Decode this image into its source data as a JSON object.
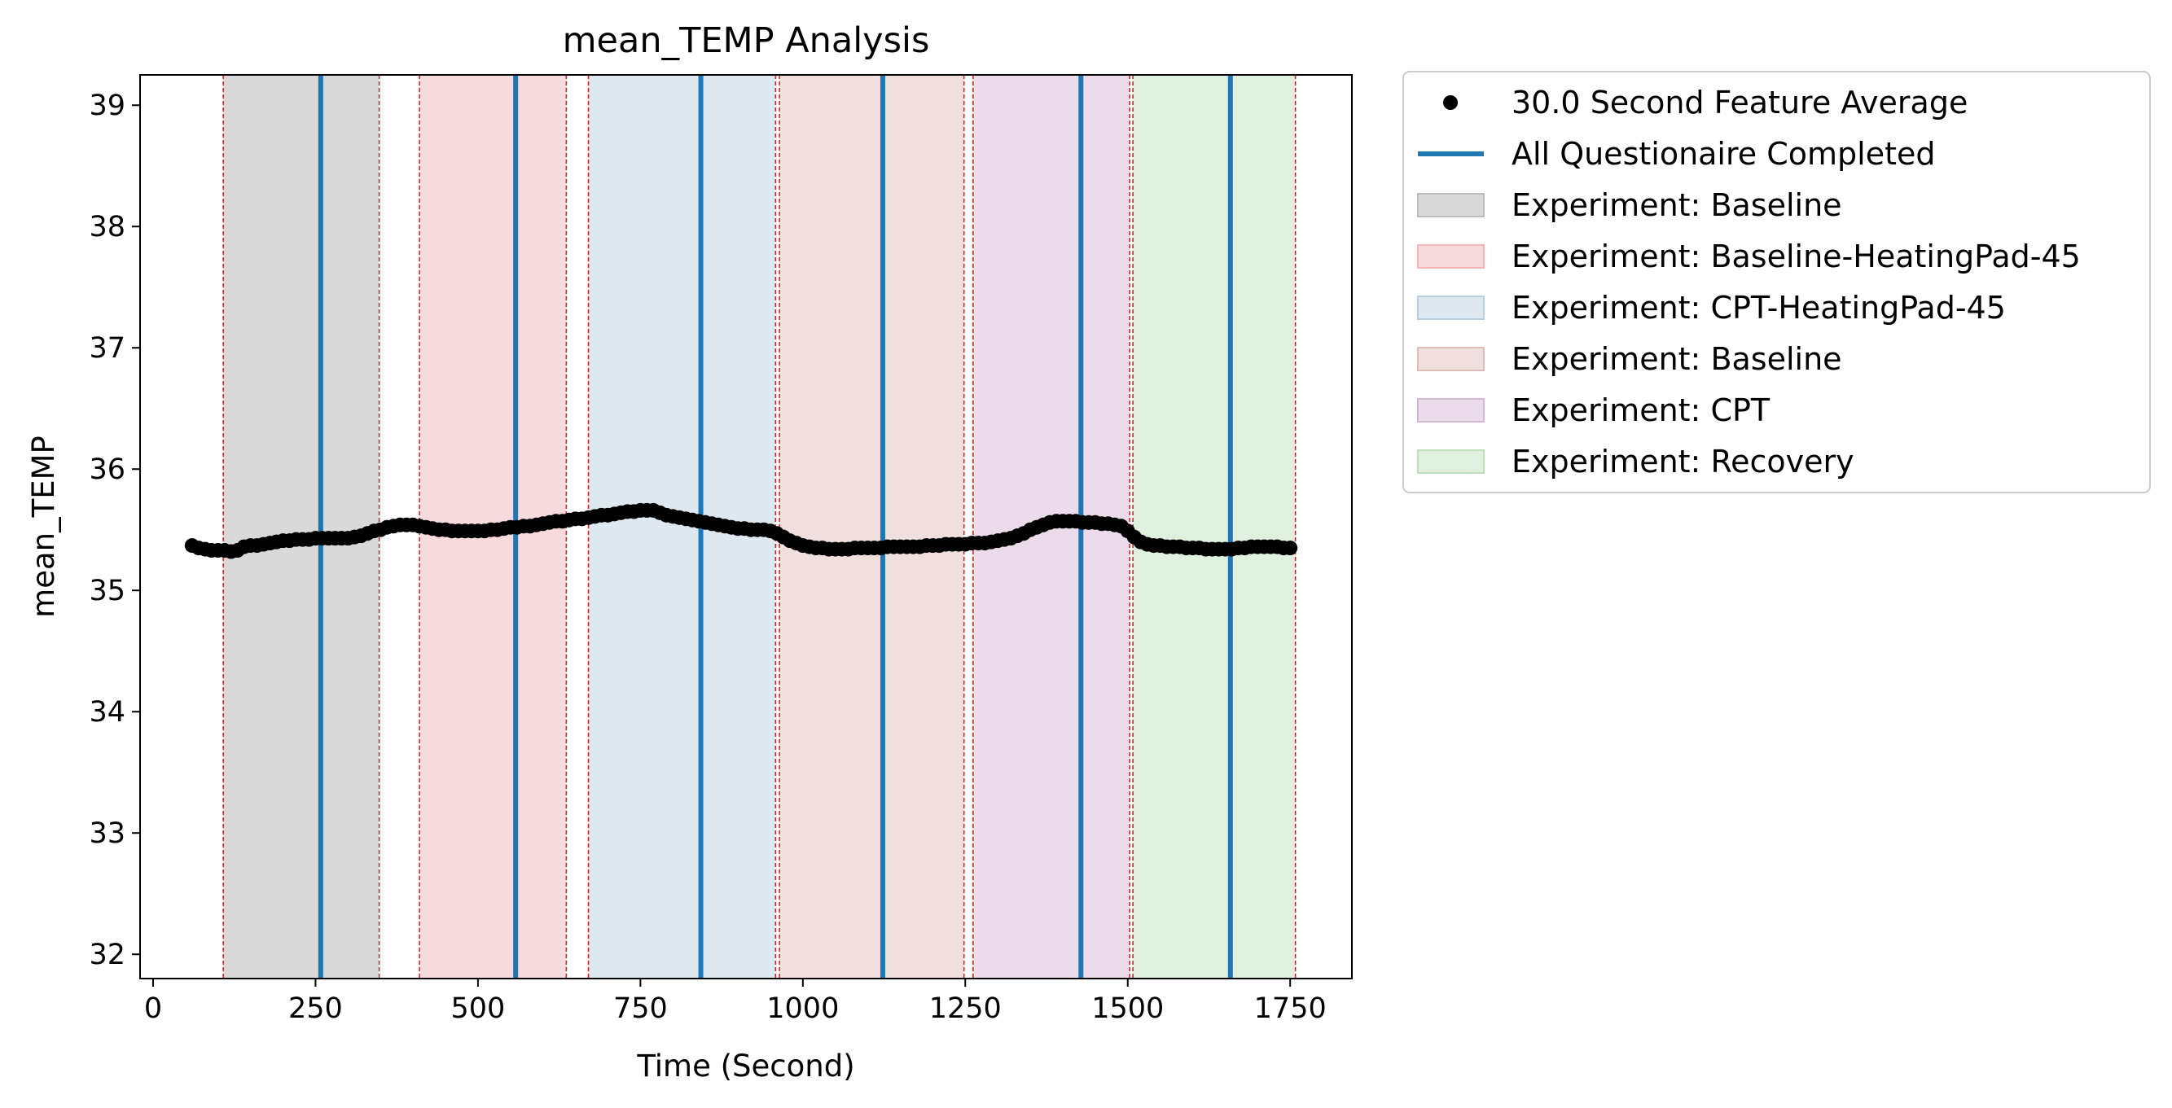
{
  "chart_data": {
    "type": "scatter",
    "title": "mean_TEMP Analysis",
    "xlabel": "Time (Second)",
    "ylabel": "mean_TEMP",
    "xlim": [
      -20,
      1845
    ],
    "ylim": [
      31.8,
      39.25
    ],
    "x_ticks": [
      0,
      250,
      500,
      750,
      1000,
      1250,
      1500,
      1750
    ],
    "y_ticks": [
      32,
      33,
      34,
      35,
      36,
      37,
      38,
      39
    ],
    "grid": false,
    "legend_position": "outside upper right",
    "colors": {
      "points": "#000000",
      "questionnaire": "#1f77b4",
      "boundary": "#d62728"
    },
    "series": [
      {
        "name": "30.0 Second Feature Average",
        "kind": "points",
        "points": [
          [
            60,
            35.37
          ],
          [
            70,
            35.35
          ],
          [
            80,
            35.34
          ],
          [
            90,
            35.33
          ],
          [
            100,
            35.33
          ],
          [
            110,
            35.33
          ],
          [
            120,
            35.32
          ],
          [
            130,
            35.33
          ],
          [
            140,
            35.36
          ],
          [
            150,
            35.37
          ],
          [
            160,
            35.37
          ],
          [
            170,
            35.38
          ],
          [
            180,
            35.39
          ],
          [
            190,
            35.4
          ],
          [
            200,
            35.41
          ],
          [
            210,
            35.41
          ],
          [
            220,
            35.42
          ],
          [
            230,
            35.42
          ],
          [
            240,
            35.42
          ],
          [
            250,
            35.43
          ],
          [
            260,
            35.43
          ],
          [
            270,
            35.43
          ],
          [
            280,
            35.43
          ],
          [
            290,
            35.43
          ],
          [
            300,
            35.43
          ],
          [
            310,
            35.44
          ],
          [
            320,
            35.45
          ],
          [
            330,
            35.47
          ],
          [
            340,
            35.49
          ],
          [
            350,
            35.5
          ],
          [
            360,
            35.52
          ],
          [
            370,
            35.53
          ],
          [
            380,
            35.54
          ],
          [
            390,
            35.54
          ],
          [
            400,
            35.54
          ],
          [
            410,
            35.53
          ],
          [
            420,
            35.52
          ],
          [
            430,
            35.51
          ],
          [
            440,
            35.5
          ],
          [
            450,
            35.5
          ],
          [
            460,
            35.49
          ],
          [
            470,
            35.49
          ],
          [
            480,
            35.49
          ],
          [
            490,
            35.49
          ],
          [
            500,
            35.49
          ],
          [
            510,
            35.49
          ],
          [
            520,
            35.5
          ],
          [
            530,
            35.5
          ],
          [
            540,
            35.51
          ],
          [
            550,
            35.52
          ],
          [
            560,
            35.52
          ],
          [
            570,
            35.53
          ],
          [
            580,
            35.53
          ],
          [
            590,
            35.54
          ],
          [
            600,
            35.55
          ],
          [
            610,
            35.56
          ],
          [
            620,
            35.57
          ],
          [
            630,
            35.57
          ],
          [
            640,
            35.58
          ],
          [
            650,
            35.59
          ],
          [
            660,
            35.59
          ],
          [
            670,
            35.6
          ],
          [
            680,
            35.61
          ],
          [
            690,
            35.62
          ],
          [
            700,
            35.62
          ],
          [
            710,
            35.63
          ],
          [
            720,
            35.64
          ],
          [
            730,
            35.65
          ],
          [
            740,
            35.65
          ],
          [
            750,
            35.66
          ],
          [
            760,
            35.66
          ],
          [
            770,
            35.66
          ],
          [
            780,
            35.64
          ],
          [
            790,
            35.62
          ],
          [
            800,
            35.61
          ],
          [
            810,
            35.6
          ],
          [
            820,
            35.59
          ],
          [
            830,
            35.58
          ],
          [
            840,
            35.57
          ],
          [
            850,
            35.56
          ],
          [
            860,
            35.55
          ],
          [
            870,
            35.54
          ],
          [
            880,
            35.53
          ],
          [
            890,
            35.52
          ],
          [
            900,
            35.51
          ],
          [
            910,
            35.51
          ],
          [
            920,
            35.5
          ],
          [
            930,
            35.5
          ],
          [
            940,
            35.5
          ],
          [
            950,
            35.49
          ],
          [
            960,
            35.47
          ],
          [
            970,
            35.44
          ],
          [
            980,
            35.41
          ],
          [
            990,
            35.39
          ],
          [
            1000,
            35.37
          ],
          [
            1010,
            35.36
          ],
          [
            1020,
            35.35
          ],
          [
            1030,
            35.35
          ],
          [
            1040,
            35.34
          ],
          [
            1050,
            35.34
          ],
          [
            1060,
            35.34
          ],
          [
            1070,
            35.34
          ],
          [
            1080,
            35.35
          ],
          [
            1090,
            35.35
          ],
          [
            1100,
            35.35
          ],
          [
            1110,
            35.35
          ],
          [
            1120,
            35.35
          ],
          [
            1130,
            35.36
          ],
          [
            1140,
            35.36
          ],
          [
            1150,
            35.36
          ],
          [
            1160,
            35.36
          ],
          [
            1170,
            35.36
          ],
          [
            1180,
            35.36
          ],
          [
            1190,
            35.37
          ],
          [
            1200,
            35.37
          ],
          [
            1210,
            35.37
          ],
          [
            1220,
            35.38
          ],
          [
            1230,
            35.38
          ],
          [
            1240,
            35.38
          ],
          [
            1250,
            35.38
          ],
          [
            1260,
            35.39
          ],
          [
            1270,
            35.39
          ],
          [
            1280,
            35.39
          ],
          [
            1290,
            35.4
          ],
          [
            1300,
            35.41
          ],
          [
            1310,
            35.42
          ],
          [
            1320,
            35.43
          ],
          [
            1330,
            35.45
          ],
          [
            1340,
            35.47
          ],
          [
            1350,
            35.5
          ],
          [
            1360,
            35.52
          ],
          [
            1370,
            35.54
          ],
          [
            1380,
            35.56
          ],
          [
            1390,
            35.57
          ],
          [
            1400,
            35.57
          ],
          [
            1410,
            35.57
          ],
          [
            1420,
            35.57
          ],
          [
            1430,
            35.56
          ],
          [
            1440,
            35.56
          ],
          [
            1450,
            35.56
          ],
          [
            1460,
            35.55
          ],
          [
            1470,
            35.55
          ],
          [
            1480,
            35.54
          ],
          [
            1490,
            35.53
          ],
          [
            1500,
            35.49
          ],
          [
            1510,
            35.44
          ],
          [
            1520,
            35.4
          ],
          [
            1530,
            35.38
          ],
          [
            1540,
            35.37
          ],
          [
            1550,
            35.37
          ],
          [
            1560,
            35.36
          ],
          [
            1570,
            35.36
          ],
          [
            1580,
            35.36
          ],
          [
            1590,
            35.35
          ],
          [
            1600,
            35.35
          ],
          [
            1610,
            35.35
          ],
          [
            1620,
            35.34
          ],
          [
            1630,
            35.34
          ],
          [
            1640,
            35.34
          ],
          [
            1650,
            35.34
          ],
          [
            1660,
            35.34
          ],
          [
            1670,
            35.35
          ],
          [
            1680,
            35.35
          ],
          [
            1690,
            35.36
          ],
          [
            1700,
            35.36
          ],
          [
            1710,
            35.36
          ],
          [
            1720,
            35.36
          ],
          [
            1730,
            35.36
          ],
          [
            1740,
            35.35
          ],
          [
            1750,
            35.35
          ]
        ]
      },
      {
        "name": "All Questionaire Completed",
        "kind": "vlines",
        "x": [
          258,
          558,
          843,
          1123,
          1428,
          1658
        ]
      }
    ],
    "shaded_regions": [
      {
        "name": "Experiment: Baseline",
        "start": 108,
        "end": 348,
        "color": "#d9d9d9"
      },
      {
        "name": "Experiment: Baseline-HeatingPad-45",
        "start": 410,
        "end": 636,
        "color": "#f7dadb"
      },
      {
        "name": "Experiment: CPT-HeatingPad-45",
        "start": 670,
        "end": 958,
        "color": "#dde8f1"
      },
      {
        "name": "Experiment: Baseline",
        "start": 964,
        "end": 1248,
        "color": "#efdfdd"
      },
      {
        "name": "Experiment: CPT",
        "start": 1262,
        "end": 1503,
        "color": "#ebdbeb"
      },
      {
        "name": "Experiment: Recovery",
        "start": 1508,
        "end": 1758,
        "color": "#dff0de"
      }
    ],
    "region_boundaries": [
      108,
      348,
      410,
      636,
      670,
      958,
      964,
      1248,
      1262,
      1503,
      1508,
      1758
    ],
    "legend": [
      {
        "label": "30.0 Second Feature Average",
        "kind": "dot",
        "color": "#000000"
      },
      {
        "label": "All Questionaire Completed",
        "kind": "line",
        "color": "#1f77b4"
      },
      {
        "label": "Experiment: Baseline",
        "kind": "patch",
        "fill": "#d9d9d9",
        "stroke": "#bdbdbd"
      },
      {
        "label": "Experiment: Baseline-HeatingPad-45",
        "kind": "patch",
        "fill": "#f7dadb",
        "stroke": "#f0b6b8"
      },
      {
        "label": "Experiment: CPT-HeatingPad-45",
        "kind": "patch",
        "fill": "#dde8f1",
        "stroke": "#b9d0e3"
      },
      {
        "label": "Experiment: Baseline",
        "kind": "patch",
        "fill": "#efdfdd",
        "stroke": "#ddbdb9"
      },
      {
        "label": "Experiment: CPT",
        "kind": "patch",
        "fill": "#ebdbeb",
        "stroke": "#d6b6d6"
      },
      {
        "label": "Experiment: Recovery",
        "kind": "patch",
        "fill": "#dff0de",
        "stroke": "#bde0bb"
      }
    ]
  }
}
